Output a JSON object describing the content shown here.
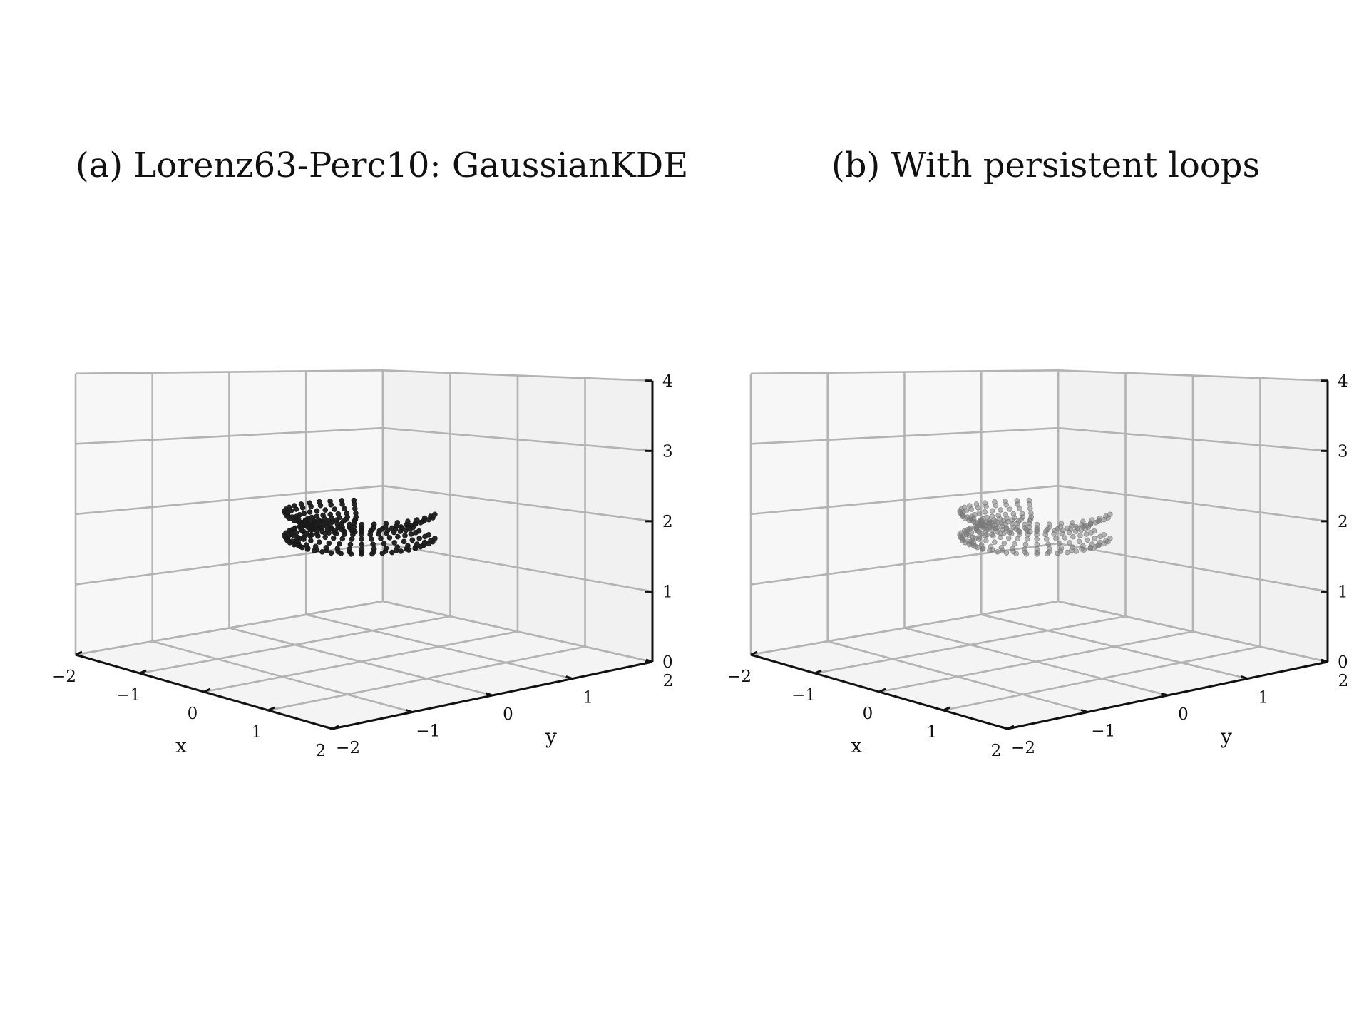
{
  "chart_data": [
    {
      "type": "scatter3d",
      "title": "(a) Lorenz63-Perc10: GaussianKDE",
      "xlabel": "x",
      "ylabel": "y",
      "zlabel": "",
      "xlim": [
        -2,
        2
      ],
      "ylim": [
        -2,
        2
      ],
      "zlim": [
        0,
        4
      ],
      "x_ticks": [
        "−2",
        "−1",
        "0",
        "1",
        "2"
      ],
      "y_ticks": [
        "−2",
        "−1",
        "0",
        "1",
        "2"
      ],
      "z_ticks": [
        "0",
        "1",
        "2",
        "3",
        "4"
      ],
      "grid": true,
      "point_color": "#1a1a1a",
      "point_opacity": 0.95,
      "point_cloud": {
        "shape": "ring",
        "center": [
          0,
          0
        ],
        "radius": 0.75,
        "rings": 10,
        "points_per_ring": 28,
        "z_range": [
          1.75,
          2.2
        ],
        "visible_arc_deg": [
          145,
          395
        ]
      }
    },
    {
      "type": "scatter3d",
      "title": "(b) With persistent loops",
      "xlabel": "x",
      "ylabel": "y",
      "zlabel": "",
      "xlim": [
        -2,
        2
      ],
      "ylim": [
        -2,
        2
      ],
      "zlim": [
        0,
        4
      ],
      "x_ticks": [
        "−2",
        "−1",
        "0",
        "1",
        "2"
      ],
      "y_ticks": [
        "−2",
        "−1",
        "0",
        "1",
        "2"
      ],
      "z_ticks": [
        "0",
        "1",
        "2",
        "3",
        "4"
      ],
      "grid": true,
      "point_color": "#7a7a7a",
      "point_opacity": 0.55,
      "point_cloud": {
        "shape": "ring",
        "center": [
          0,
          0
        ],
        "radius": 0.75,
        "rings": 10,
        "points_per_ring": 28,
        "z_range": [
          1.75,
          2.2
        ],
        "visible_arc_deg": [
          145,
          395
        ]
      }
    }
  ]
}
